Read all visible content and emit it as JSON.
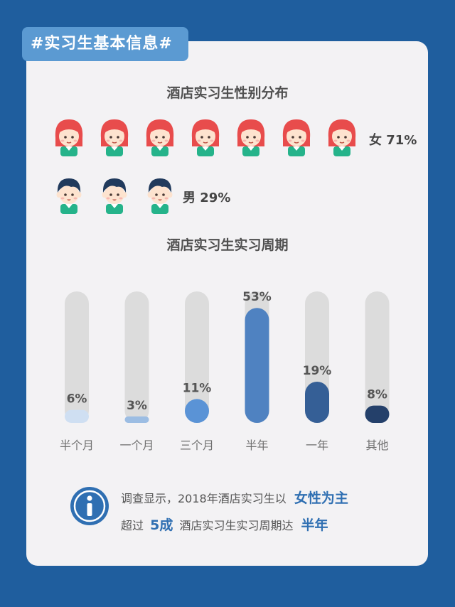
{
  "header": {
    "tag": "#实习生基本信息#"
  },
  "gender": {
    "title": "酒店实习生性别分布",
    "female": {
      "label": "女",
      "percent": "71%",
      "count": 7
    },
    "male": {
      "label": "男",
      "percent": "29%",
      "count": 3
    }
  },
  "period": {
    "title": "酒店实习生实习周期"
  },
  "chart_data": {
    "type": "bar",
    "title": "酒店实习生实习周期",
    "categories": [
      "半个月",
      "一个月",
      "三个月",
      "半年",
      "一年",
      "其他"
    ],
    "values": [
      6,
      3,
      11,
      53,
      19,
      8
    ],
    "value_labels": [
      "6%",
      "3%",
      "11%",
      "53%",
      "19%",
      "8%"
    ],
    "ylim": [
      0,
      100
    ],
    "grid": false,
    "colors": [
      "#cfdff2",
      "#9cbde3",
      "#5a93d6",
      "#4f82c1",
      "#355f96",
      "#24406a"
    ],
    "track_color": "#dcdcdc"
  },
  "info": {
    "line1_prefix": "调查显示，2018年酒店实习生以",
    "line1_emph": "女性为主",
    "line2_prefix": "超过",
    "line2_emph1": "5成",
    "line2_mid": "酒店实习生实习周期达",
    "line2_emph2": "半年",
    "icon": "info-icon"
  },
  "colors": {
    "background": "#1f5e9e",
    "card": "#f3f2f4",
    "tag": "#5b9ad2",
    "female_hair": "#e84c4c",
    "male_hair": "#213a5c",
    "shirt": "#25b38a",
    "emphasis": "#2f6fb2"
  }
}
